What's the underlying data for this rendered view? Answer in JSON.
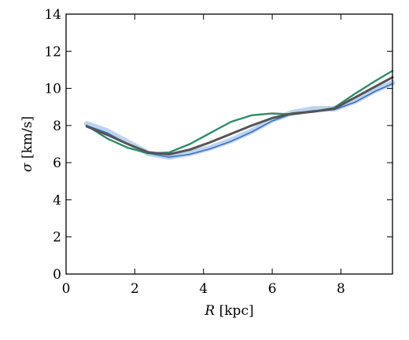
{
  "chart_data": {
    "type": "line",
    "xlabel": "R [kpc]",
    "ylabel": "σ [km/s]",
    "xlim": [
      0,
      9.5
    ],
    "ylim": [
      0,
      14
    ],
    "xticks": [
      0,
      2,
      4,
      6,
      8
    ],
    "yticks": [
      0,
      2,
      4,
      6,
      8,
      10,
      12,
      14
    ],
    "grid": false,
    "legend": "none",
    "series": [
      {
        "color": "#8fb8e6",
        "width": "band",
        "x": [
          0.6,
          1.2,
          1.8,
          2.4,
          3.0,
          3.6,
          4.2,
          4.8,
          5.4,
          6.0,
          6.6,
          7.2,
          7.8,
          8.4,
          9.0,
          9.5
        ],
        "y": [
          8.1,
          7.7,
          7.1,
          6.5,
          6.3,
          6.5,
          6.8,
          7.2,
          7.7,
          8.3,
          8.7,
          8.9,
          8.9,
          9.3,
          9.9,
          10.3
        ]
      },
      {
        "color": "#3d6fc4",
        "width": "thin",
        "x": [
          0.6,
          1.2,
          1.8,
          2.4,
          3.0,
          3.6,
          4.2,
          4.8,
          5.4,
          6.0,
          6.6,
          7.2,
          7.8,
          8.4,
          9.0,
          9.5
        ],
        "y": [
          8.0,
          7.6,
          7.0,
          6.5,
          6.3,
          6.45,
          6.75,
          7.15,
          7.65,
          8.25,
          8.65,
          8.8,
          8.85,
          9.25,
          9.85,
          10.25
        ]
      },
      {
        "color": "#2e8b68",
        "width": "medium",
        "x": [
          0.6,
          1.2,
          1.8,
          2.4,
          3.0,
          3.6,
          4.2,
          4.8,
          5.4,
          6.0,
          6.6,
          7.2,
          7.8,
          8.4,
          9.0,
          9.5
        ],
        "y": [
          8.0,
          7.3,
          6.8,
          6.5,
          6.55,
          7.0,
          7.6,
          8.2,
          8.55,
          8.65,
          8.6,
          8.75,
          8.95,
          9.7,
          10.4,
          10.95
        ]
      },
      {
        "color": "#555555",
        "width": "thick",
        "x": [
          0.6,
          1.2,
          1.8,
          2.4,
          3.0,
          3.6,
          4.2,
          4.8,
          5.4,
          6.0,
          6.6,
          7.2,
          7.8,
          8.4,
          9.0,
          9.5
        ],
        "y": [
          7.95,
          7.5,
          7.0,
          6.55,
          6.45,
          6.7,
          7.1,
          7.55,
          8.0,
          8.4,
          8.65,
          8.75,
          8.9,
          9.5,
          10.1,
          10.6
        ]
      }
    ]
  }
}
